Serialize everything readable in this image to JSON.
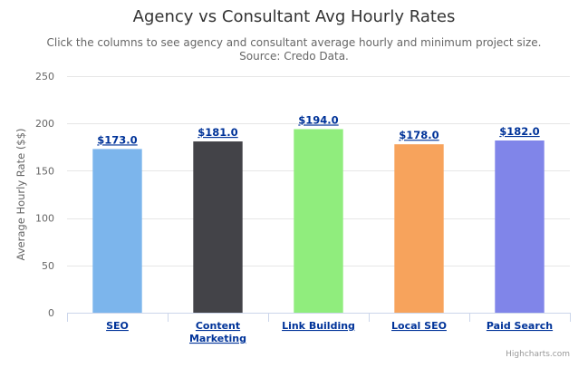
{
  "chart_data": {
    "type": "bar",
    "title": "Agency vs Consultant Avg Hourly Rates",
    "subtitle": [
      "Click the columns to see agency and consultant average hourly and minimum project size.",
      "Source: Credo Data."
    ],
    "ylabel": "Average Hourly Rate ($$)",
    "xlabel": "",
    "ylim": [
      0,
      250
    ],
    "yticks": [
      0,
      50,
      100,
      150,
      200,
      250
    ],
    "categories": [
      [
        "SEO"
      ],
      [
        "Content",
        "Marketing"
      ],
      [
        "Link Building"
      ],
      [
        "Local SEO"
      ],
      [
        "Paid Search"
      ]
    ],
    "values": [
      173,
      181,
      194,
      178,
      182
    ],
    "data_labels": [
      "$173.0",
      "$181.0",
      "$194.0",
      "$178.0",
      "$182.0"
    ],
    "colors": [
      "#7cb5ec",
      "#434348",
      "#90ed7d",
      "#f7a35c",
      "#8085e9"
    ],
    "grid": true,
    "legend": "none"
  },
  "credits": "Highcharts.com"
}
